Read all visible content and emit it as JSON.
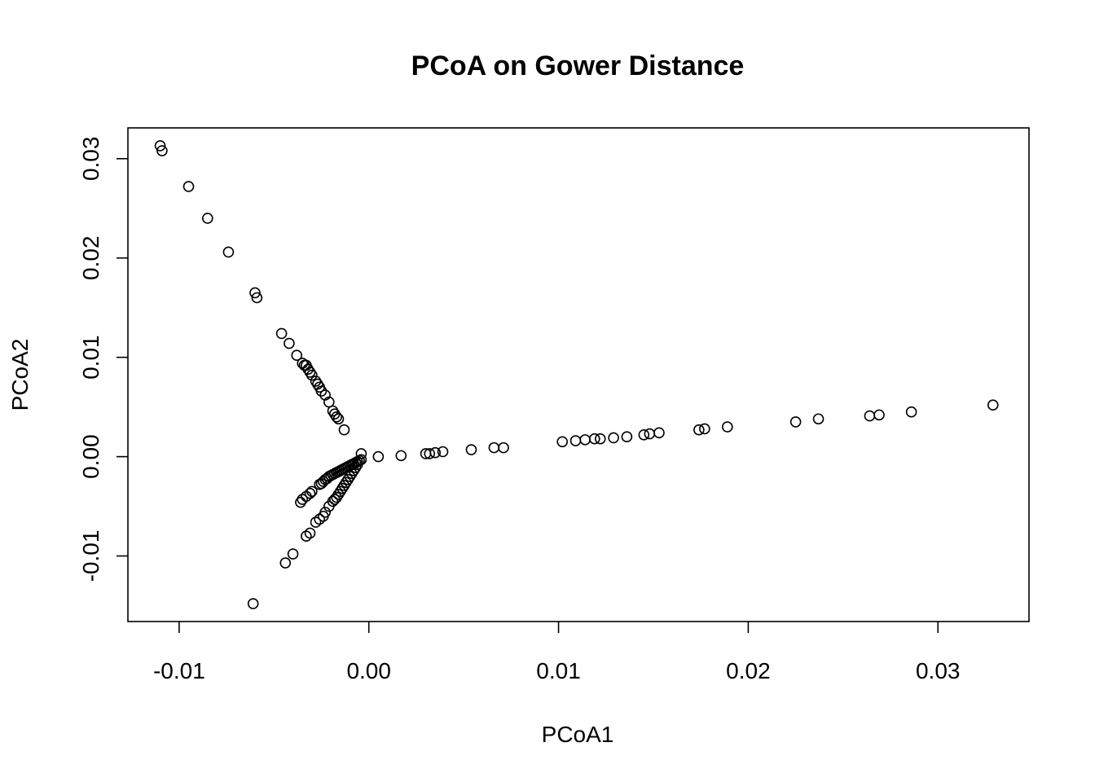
{
  "chart_data": {
    "type": "scatter",
    "title": "PCoA on Gower Distance",
    "xlabel": "PCoA1",
    "ylabel": "PCoA2",
    "xlim": [
      -0.0127,
      0.0348
    ],
    "ylim": [
      -0.0166,
      0.0331
    ],
    "xticks": [
      -0.01,
      0.0,
      0.01,
      0.02,
      0.03
    ],
    "xtick_labels": [
      "-0.01",
      "0.00",
      "0.01",
      "0.02",
      "0.03"
    ],
    "yticks": [
      -0.01,
      0.0,
      0.01,
      0.02,
      0.03
    ],
    "ytick_labels": [
      "-0.01",
      "0.00",
      "0.01",
      "0.02",
      "0.03"
    ],
    "grid": false,
    "legend": "none",
    "marker": "open-circle",
    "point_color": "#000000",
    "points": [
      [
        -0.011,
        0.0313
      ],
      [
        -0.0109,
        0.0308
      ],
      [
        -0.0095,
        0.0272
      ],
      [
        -0.0085,
        0.024
      ],
      [
        -0.0074,
        0.0206
      ],
      [
        -0.006,
        0.0165
      ],
      [
        -0.0059,
        0.016
      ],
      [
        -0.0046,
        0.0124
      ],
      [
        -0.0042,
        0.0114
      ],
      [
        -0.0038,
        0.0102
      ],
      [
        -0.0035,
        0.0094
      ],
      [
        -0.0034,
        0.0092
      ],
      [
        -0.0033,
        0.0092
      ],
      [
        -0.0032,
        0.0088
      ],
      [
        -0.0031,
        0.0085
      ],
      [
        -0.003,
        0.0082
      ],
      [
        -0.0028,
        0.0076
      ],
      [
        -0.0027,
        0.0073
      ],
      [
        -0.0026,
        0.007
      ],
      [
        -0.0025,
        0.0066
      ],
      [
        -0.0023,
        0.0062
      ],
      [
        -0.0021,
        0.0055
      ],
      [
        -0.0019,
        0.0046
      ],
      [
        -0.0018,
        0.0043
      ],
      [
        -0.0017,
        0.004
      ],
      [
        -0.0016,
        0.0038
      ],
      [
        -0.0013,
        0.0027
      ],
      [
        -0.0004,
        0.0003
      ],
      [
        0.0005,
        0.0
      ],
      [
        0.0017,
        0.0001
      ],
      [
        0.003,
        0.0003
      ],
      [
        0.0032,
        0.0003
      ],
      [
        0.0035,
        0.0004
      ],
      [
        0.0039,
        0.0005
      ],
      [
        0.0054,
        0.0007
      ],
      [
        0.0066,
        0.0009
      ],
      [
        0.0071,
        0.0009
      ],
      [
        0.0102,
        0.0015
      ],
      [
        0.0109,
        0.0016
      ],
      [
        0.0114,
        0.0017
      ],
      [
        0.0119,
        0.0018
      ],
      [
        0.0122,
        0.0018
      ],
      [
        0.0129,
        0.0019
      ],
      [
        0.0136,
        0.002
      ],
      [
        0.0145,
        0.0022
      ],
      [
        0.0148,
        0.0023
      ],
      [
        0.0153,
        0.0024
      ],
      [
        0.0174,
        0.0027
      ],
      [
        0.0177,
        0.0028
      ],
      [
        0.0189,
        0.003
      ],
      [
        0.0225,
        0.0035
      ],
      [
        0.0237,
        0.0038
      ],
      [
        0.0264,
        0.0041
      ],
      [
        0.0269,
        0.0042
      ],
      [
        0.0286,
        0.0045
      ],
      [
        0.0329,
        0.0052
      ],
      [
        -0.0004,
        -0.0003
      ],
      [
        -0.0005,
        -0.0004
      ],
      [
        -0.0006,
        -0.0005
      ],
      [
        -0.0007,
        -0.0006
      ],
      [
        -0.0008,
        -0.0007
      ],
      [
        -0.0009,
        -0.0008
      ],
      [
        -0.001,
        -0.0009
      ],
      [
        -0.0011,
        -0.001
      ],
      [
        -0.0012,
        -0.0011
      ],
      [
        -0.0013,
        -0.0012
      ],
      [
        -0.0014,
        -0.0013
      ],
      [
        -0.0015,
        -0.0014
      ],
      [
        -0.0016,
        -0.0015
      ],
      [
        -0.0017,
        -0.0016
      ],
      [
        -0.0018,
        -0.0017
      ],
      [
        -0.0019,
        -0.0018
      ],
      [
        -0.002,
        -0.0019
      ],
      [
        -0.0021,
        -0.002
      ],
      [
        -0.0022,
        -0.0022
      ],
      [
        -0.0023,
        -0.0023
      ],
      [
        -0.0024,
        -0.0025
      ],
      [
        -0.0025,
        -0.0027
      ],
      [
        -0.0026,
        -0.0028
      ],
      [
        -0.0006,
        -0.0008
      ],
      [
        -0.0007,
        -0.0011
      ],
      [
        -0.0008,
        -0.0014
      ],
      [
        -0.0009,
        -0.0017
      ],
      [
        -0.001,
        -0.002
      ],
      [
        -0.0011,
        -0.0023
      ],
      [
        -0.0012,
        -0.0026
      ],
      [
        -0.0013,
        -0.0029
      ],
      [
        -0.0014,
        -0.0032
      ],
      [
        -0.0015,
        -0.0035
      ],
      [
        -0.0016,
        -0.0038
      ],
      [
        -0.0017,
        -0.0041
      ],
      [
        -0.0018,
        -0.0043
      ],
      [
        -0.0019,
        -0.0045
      ],
      [
        -0.0021,
        -0.005
      ],
      [
        -0.0023,
        -0.0056
      ],
      [
        -0.0024,
        -0.006
      ],
      [
        -0.0026,
        -0.0063
      ],
      [
        -0.0028,
        -0.0066
      ],
      [
        -0.003,
        -0.0035
      ],
      [
        -0.0031,
        -0.0037
      ],
      [
        -0.0033,
        -0.004
      ],
      [
        -0.0035,
        -0.0043
      ],
      [
        -0.0036,
        -0.0046
      ],
      [
        -0.0031,
        -0.0077
      ],
      [
        -0.0033,
        -0.008
      ],
      [
        -0.004,
        -0.0098
      ],
      [
        -0.0044,
        -0.0107
      ],
      [
        -0.0061,
        -0.0148
      ]
    ]
  }
}
